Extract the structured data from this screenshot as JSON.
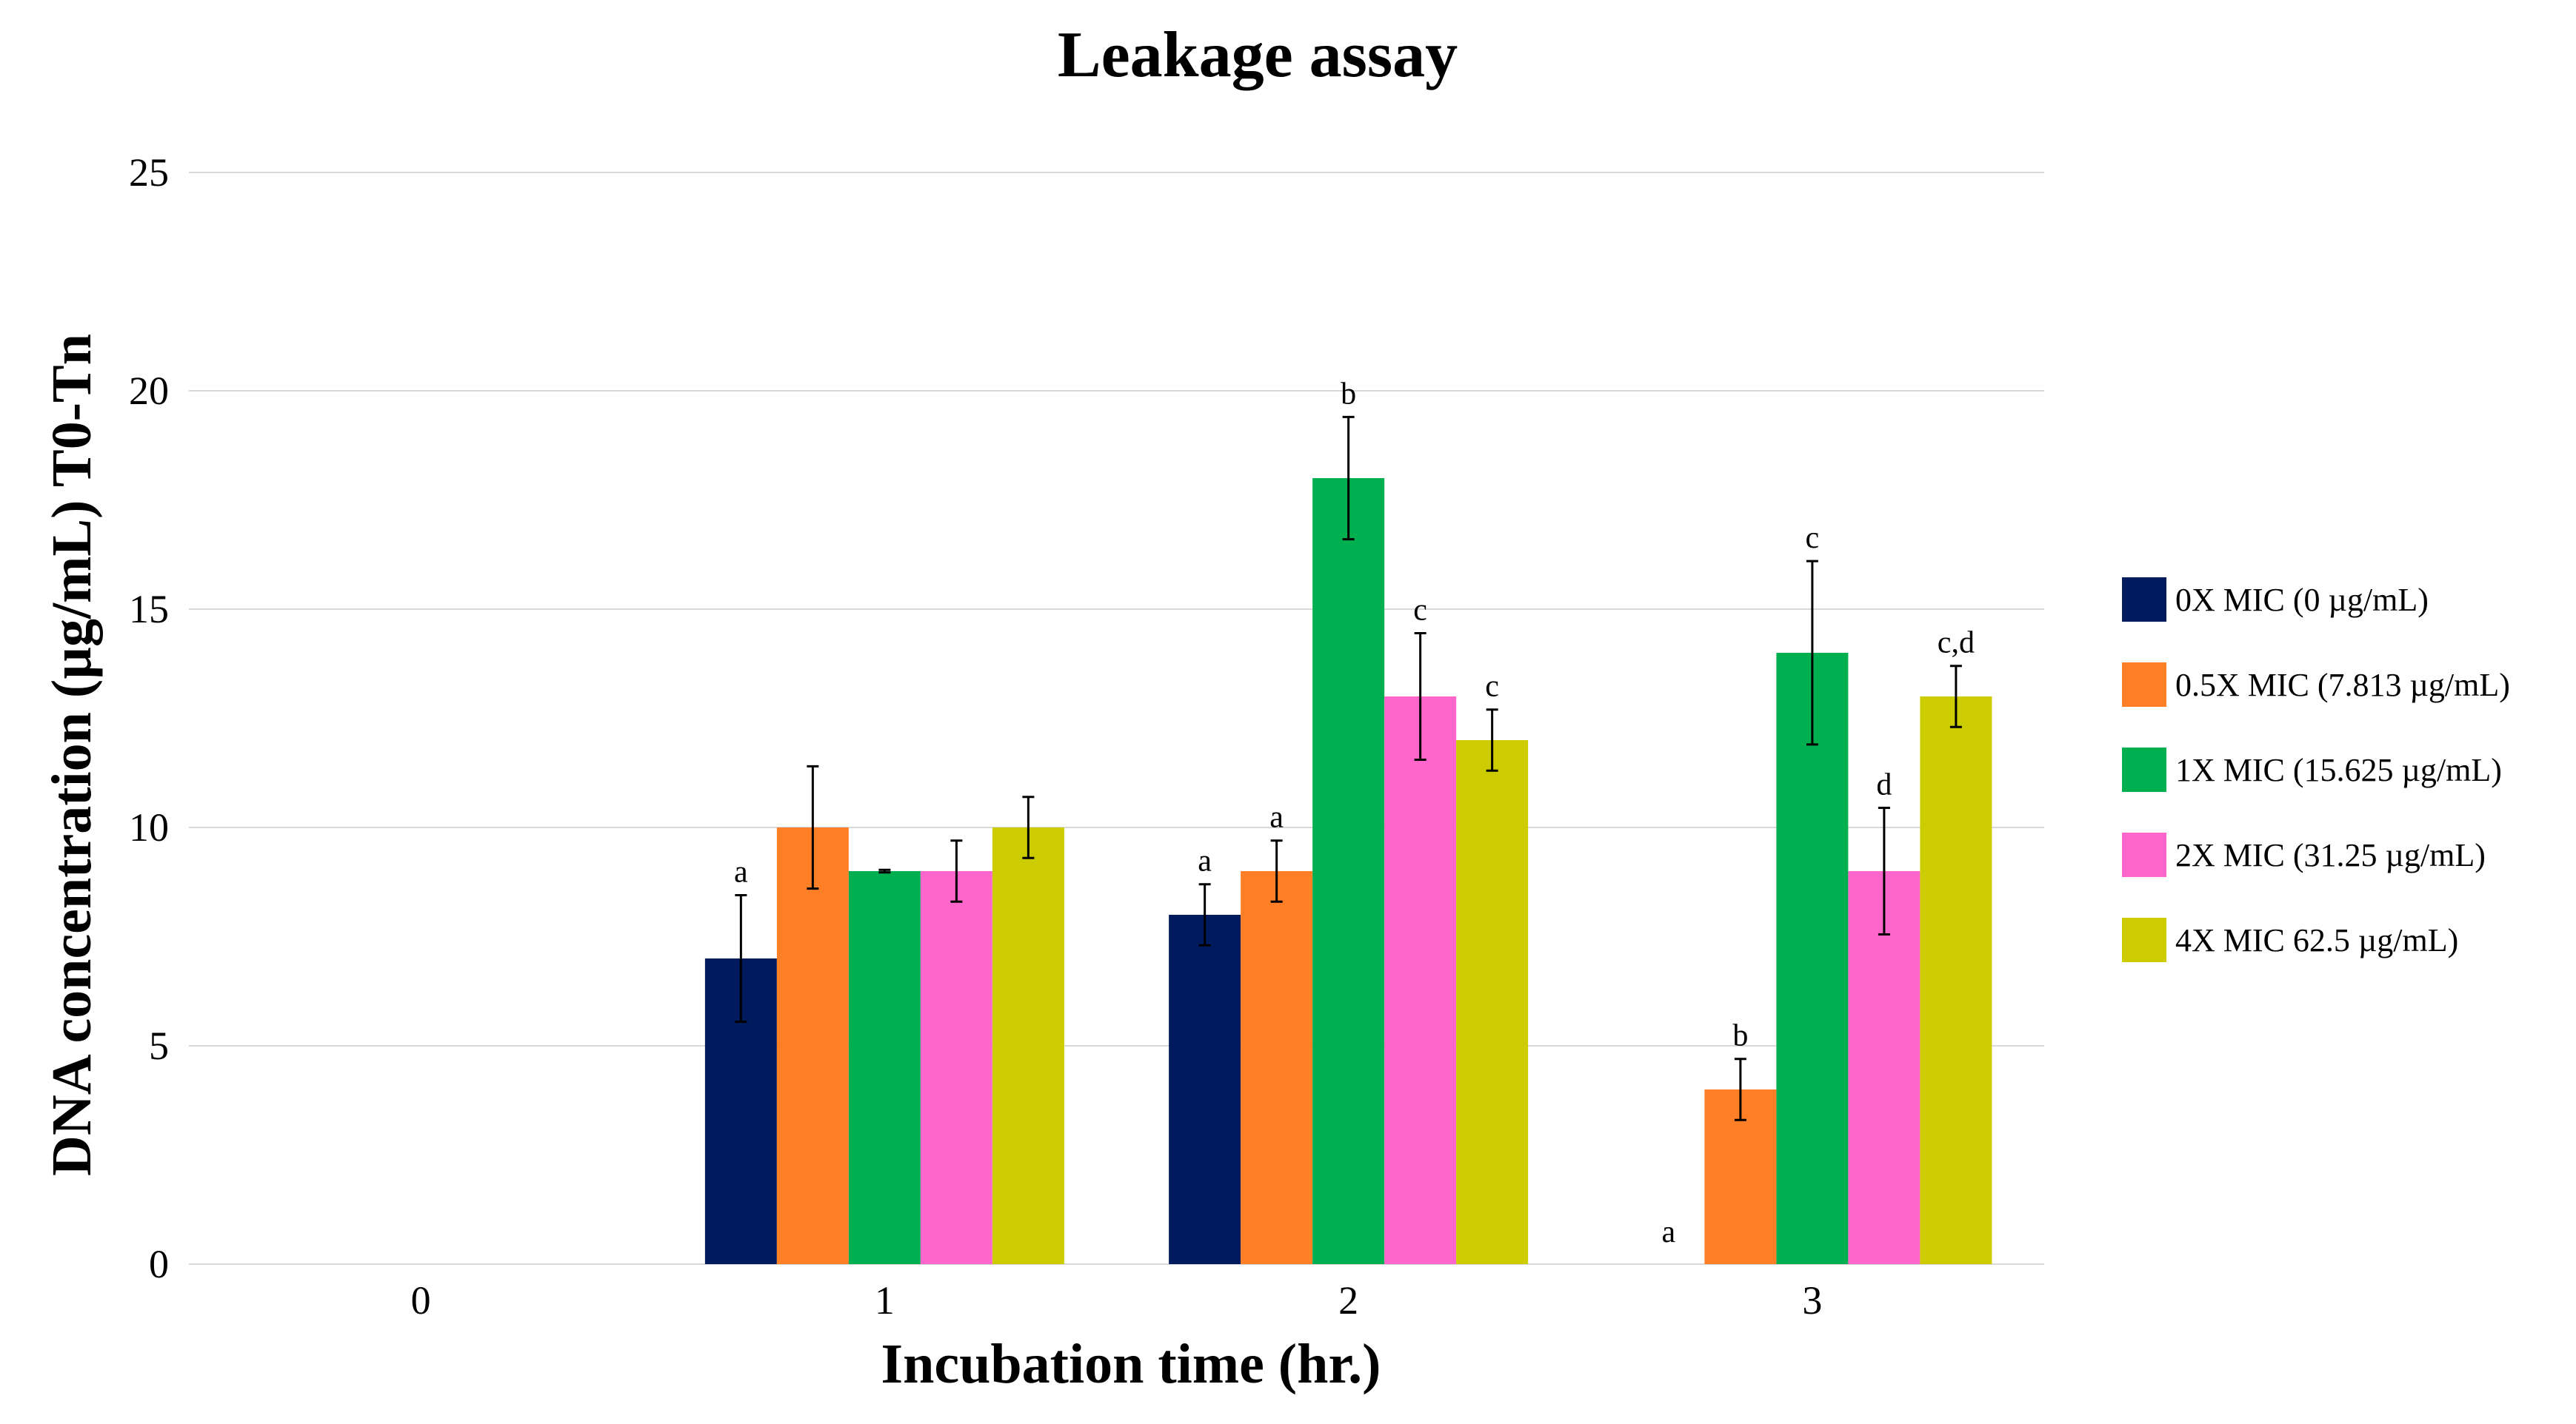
{
  "chart_data": {
    "type": "bar",
    "title": "Leakage assay",
    "xlabel": "Incubation time (hr.)",
    "ylabel": "DNA concentration (µg/mL) T0-Tn",
    "categories": [
      "0",
      "1",
      "2",
      "3"
    ],
    "ylim": [
      0,
      25
    ],
    "yticks": [
      "0",
      "5",
      "10",
      "15",
      "20",
      "25"
    ],
    "grid": true,
    "legend_position": "right",
    "series": [
      {
        "name": "0X MIC (0 µg/mL)",
        "color": "#001a5e",
        "values": [
          0,
          7,
          8,
          0
        ],
        "errors": [
          0,
          1.45,
          0.7,
          0
        ],
        "labels": [
          "",
          "a",
          "a",
          "a"
        ]
      },
      {
        "name": "0.5X MIC (7.813 µg/mL)",
        "color": "#ff7f27",
        "values": [
          0,
          10,
          9,
          4
        ],
        "errors": [
          0,
          1.4,
          0.7,
          0.7
        ],
        "labels": [
          "",
          "",
          "a",
          "b"
        ]
      },
      {
        "name": "1X MIC (15.625 µg/mL)",
        "color": "#00b050",
        "values": [
          0,
          9,
          18,
          14
        ],
        "errors": [
          0,
          0.03,
          1.4,
          2.1
        ],
        "labels": [
          "",
          "",
          "b",
          "c"
        ]
      },
      {
        "name": "2X MIC (31.25 µg/mL)",
        "color": "#ff66cc",
        "values": [
          0,
          9,
          13,
          9
        ],
        "errors": [
          0,
          0.7,
          1.45,
          1.45
        ],
        "labels": [
          "",
          "",
          "c",
          "d"
        ]
      },
      {
        "name": "4X MIC 62.5 µg/mL)",
        "color": "#cccc00",
        "values": [
          0,
          10,
          12,
          13
        ],
        "errors": [
          0,
          0.7,
          0.7,
          0.7
        ],
        "labels": [
          "",
          "",
          "c",
          "c,d"
        ]
      }
    ]
  }
}
